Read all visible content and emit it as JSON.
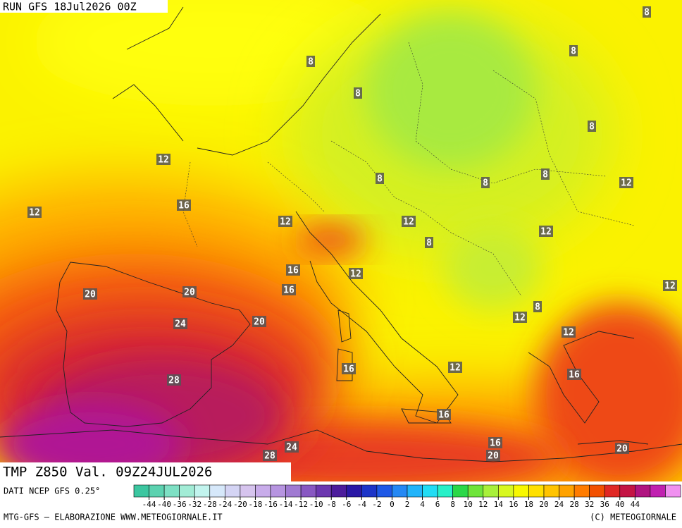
{
  "header": {
    "run": "RUN GFS 18Jul2026 00Z"
  },
  "map": {
    "title": "TMP Z850 Val. 09Z24JUL2026",
    "contour_labels": [
      8,
      8,
      8,
      8,
      8,
      12,
      8,
      8,
      8,
      12,
      12,
      16,
      12,
      12,
      12,
      8,
      16,
      12,
      16,
      12,
      20,
      20,
      8,
      12,
      24,
      20,
      12,
      16,
      12,
      28,
      16,
      16,
      24,
      28,
      16,
      20,
      20
    ]
  },
  "colorbar": {
    "ticks": [
      -44,
      -40,
      -36,
      -32,
      -28,
      -24,
      -20,
      -18,
      -16,
      -14,
      -12,
      -10,
      -8,
      -6,
      -4,
      -2,
      0,
      2,
      4,
      6,
      8,
      10,
      12,
      14,
      16,
      18,
      20,
      24,
      28,
      32,
      36,
      40,
      44
    ],
    "colors": [
      "#3cc6a0",
      "#5cd2b0",
      "#7ee0c4",
      "#a2ecd6",
      "#c2f4ee",
      "#d6e8fa",
      "#d4d4f4",
      "#d6c4ee",
      "#c8acea",
      "#b694e0",
      "#a07ad2",
      "#8858c2",
      "#6c38b0",
      "#4c1c9c",
      "#2a18a6",
      "#1c34c8",
      "#1e58e6",
      "#2488f4",
      "#22b4fa",
      "#22dcf4",
      "#28f0c8",
      "#2ad848",
      "#6ee43a",
      "#a8f03a",
      "#d8f820",
      "#f8f800",
      "#ffe000",
      "#ffc400",
      "#ffa200",
      "#ff7c00",
      "#f25000",
      "#e02824",
      "#c41444",
      "#b01480",
      "#c020b0",
      "#f090f0"
    ]
  },
  "footer": {
    "source": "DATI NCEP GFS 0.25°",
    "credit": "MTG-GFS — ELABORAZIONE WWW.METEOGIORNALE.IT",
    "copyright": "(C) METEOGIORNALE"
  }
}
